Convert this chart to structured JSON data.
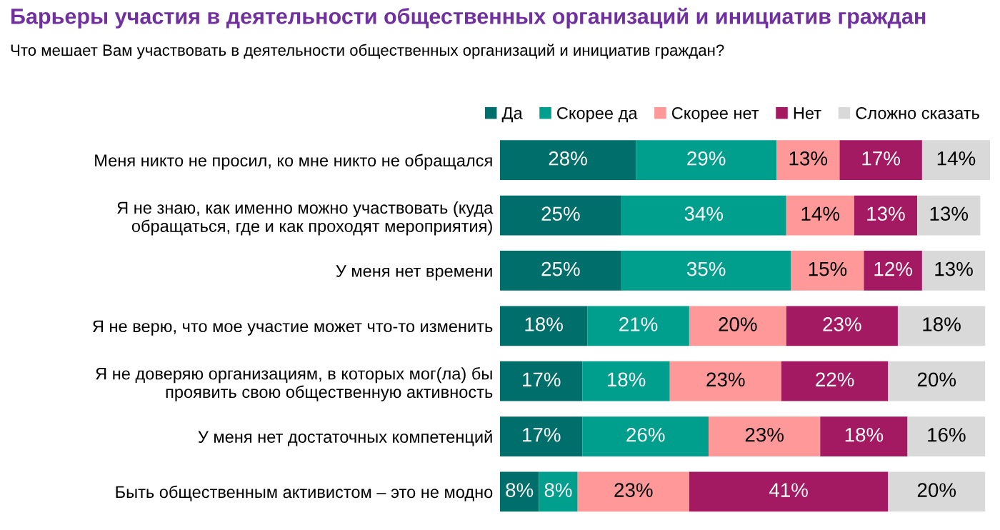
{
  "chart_data": {
    "type": "bar",
    "orientation": "horizontal",
    "stacked": true,
    "legend": "top right",
    "grid": false,
    "tick_labels": "y",
    "title": "Барьеры участия в деятельности общественных организаций и инициатив граждан",
    "subtitle": "Что мешает Вам участвовать в деятельности общественных организаций и инициатив граждан?",
    "categories": [
      "Меня никто не просил, ко мне никто не обращался",
      "Я не знаю, как именно можно участвовать (куда\nобращаться, где и как проходят мероприятия)",
      "У меня нет времени",
      "Я не верю, что мое участие может что-то изменить",
      "Я не доверяю организациям, в которых мог(ла) бы\nпроявить свою общественную активность",
      "У меня нет достаточных компетенций",
      "Быть общественным активистом – это не модно"
    ],
    "series": [
      {
        "name": "Да",
        "color": "#006e6a",
        "values": [
          28,
          25,
          25,
          18,
          17,
          17,
          8
        ],
        "value_labels": [
          "28%",
          "25%",
          "25%",
          "18%",
          "17%",
          "17%",
          "8%"
        ]
      },
      {
        "name": "Скорее да",
        "color": "#009e8c",
        "values": [
          29,
          34,
          35,
          21,
          18,
          26,
          8
        ],
        "value_labels": [
          "29%",
          "34%",
          "35%",
          "21%",
          "18%",
          "26%",
          "8%"
        ]
      },
      {
        "name": "Скорее нет",
        "color": "#ff9999",
        "values": [
          13,
          14,
          15,
          20,
          23,
          23,
          23
        ],
        "value_labels": [
          "13%",
          "14%",
          "15%",
          "20%",
          "23%",
          "23%",
          "23%"
        ]
      },
      {
        "name": "Нет",
        "color": "#a31a62",
        "values": [
          17,
          13,
          12,
          23,
          22,
          18,
          41
        ],
        "value_labels": [
          "17%",
          "13%",
          "12%",
          "23%",
          "22%",
          "18%",
          "41%"
        ]
      },
      {
        "name": "Сложно сказать",
        "color": "#d9d9d9",
        "values": [
          14,
          13,
          13,
          18,
          20,
          16,
          20
        ],
        "value_labels": [
          "14%",
          "13%",
          "13%",
          "18%",
          "20%",
          "16%",
          "20%"
        ]
      }
    ]
  }
}
